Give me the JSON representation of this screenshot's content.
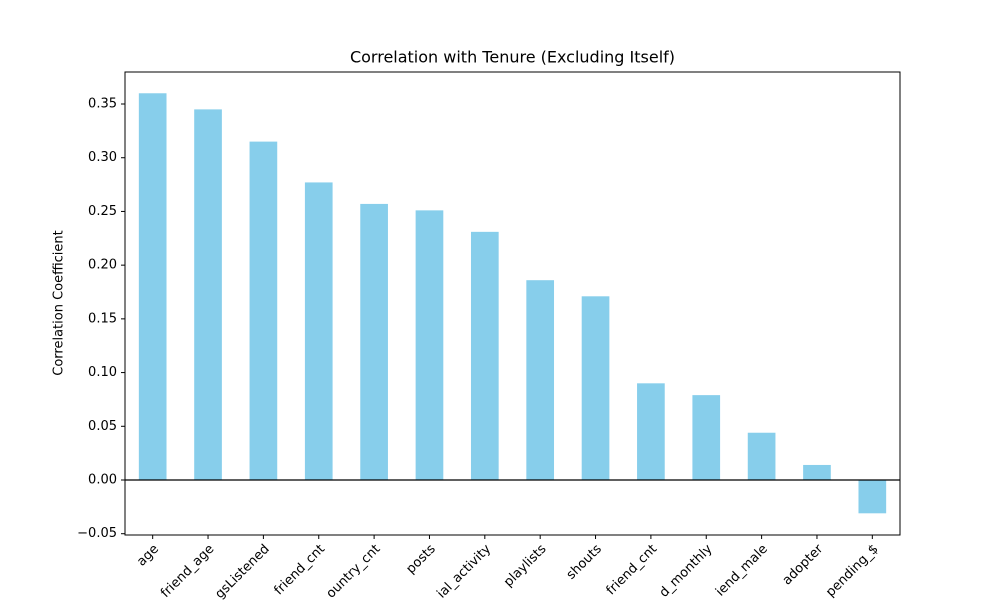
{
  "chart_data": {
    "type": "bar",
    "title": "Correlation with Tenure (Excluding Itself)",
    "y_label": "Correlation Coefficient",
    "categories": [
      "age",
      "friend_age",
      "gsListened",
      "friend_cnt",
      "ountry_cnt",
      "posts",
      "ial_activity",
      "playlists",
      "shouts",
      "friend_cnt",
      "d_monthly",
      "iend_male",
      "adopter",
      "pending_$"
    ],
    "values": [
      0.36,
      0.345,
      0.315,
      0.277,
      0.257,
      0.251,
      0.231,
      0.186,
      0.171,
      0.09,
      0.079,
      0.044,
      0.014,
      -0.031
    ],
    "color": "#87ceeb",
    "zero_line": true,
    "ylim": [
      -0.0512,
      0.3798
    ],
    "yticks": [
      {
        "value": -0.05,
        "label": "−0.05"
      },
      {
        "value": 0,
        "label": "0.00"
      },
      {
        "value": 0.05,
        "label": "0.05"
      },
      {
        "value": 0.1,
        "label": "0.10"
      },
      {
        "value": 0.15,
        "label": "0.15"
      },
      {
        "value": 0.2,
        "label": "0.20"
      },
      {
        "value": 0.25,
        "label": "0.25"
      },
      {
        "value": 0.3,
        "label": "0.30"
      },
      {
        "value": 0.35,
        "label": "0.35"
      }
    ]
  }
}
